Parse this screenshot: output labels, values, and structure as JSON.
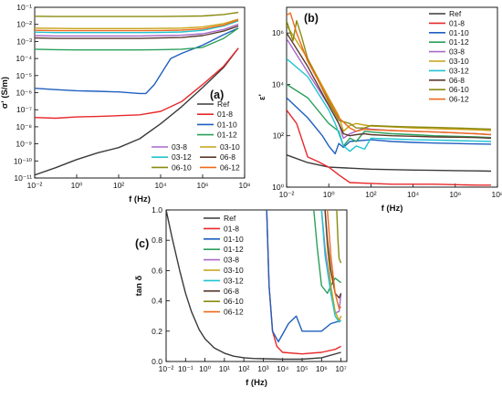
{
  "colors": {
    "Ref": "#3a3a3a",
    "01-8": "#e8282b",
    "01-10": "#1f5fbf",
    "01-12": "#2aa05a",
    "03-8": "#a768c9",
    "03-10": "#c7a013",
    "03-12": "#20c3d1",
    "06-8": "#5a3a2e",
    "06-10": "#8a8a10",
    "06-12": "#ee6a1c"
  },
  "chart_data": [
    {
      "id": "a",
      "type": "line",
      "panel_label": "(a)",
      "xlabel": "f (Hz)",
      "ylabel": "σ' (S/m)",
      "xscale": "log",
      "yscale": "log",
      "xlim": [
        0.01,
        100000000
      ],
      "ylim": [
        1e-11,
        0.1
      ],
      "xticks": [
        "10⁻²",
        "10⁰",
        "10²",
        "10⁴",
        "10⁶",
        "10⁸"
      ],
      "yticks": [
        "10⁻¹¹",
        "10⁻¹⁰",
        "10⁻⁹",
        "10⁻⁸",
        "10⁻⁷",
        "10⁻⁶",
        "10⁻⁵",
        "10⁻⁴",
        "10⁻³",
        "10⁻²",
        "10⁻¹"
      ],
      "series": [
        {
          "name": "Ref",
          "x": [
            0.01,
            0.1,
            1,
            10,
            100,
            1000,
            10000,
            100000,
            1000000,
            10000000,
            50000000
          ],
          "y": [
            1.5e-11,
            4e-11,
            1.2e-10,
            3e-10,
            6e-10,
            2e-09,
            1.5e-08,
            1.5e-07,
            2e-06,
            3e-05,
            0.0004
          ]
        },
        {
          "name": "01-8",
          "x": [
            0.01,
            0.1,
            1,
            10,
            100,
            1000,
            10000,
            100000,
            1000000,
            10000000,
            50000000
          ],
          "y": [
            3.5e-08,
            3.2e-08,
            3.8e-08,
            4e-08,
            4.5e-08,
            5e-08,
            8e-08,
            3e-07,
            3e-06,
            3.5e-05,
            0.0004
          ]
        },
        {
          "name": "01-10",
          "x": [
            0.01,
            0.1,
            1,
            10,
            100,
            1000,
            2000,
            5000,
            30000,
            100000,
            1000000,
            10000000,
            50000000
          ],
          "y": [
            1.8e-06,
            1.5e-06,
            1.3e-06,
            1.2e-06,
            1.1e-06,
            9e-07,
            9e-07,
            3e-06,
            0.0001,
            0.0002,
            0.0006,
            0.0025,
            0.006
          ]
        },
        {
          "name": "01-12",
          "x": [
            0.01,
            0.1,
            1,
            10,
            100,
            1000,
            10000,
            100000,
            1000000,
            10000000,
            50000000
          ],
          "y": [
            0.00035,
            0.00033,
            0.00032,
            0.00032,
            0.00032,
            0.00032,
            0.00033,
            0.00035,
            0.00045,
            0.0015,
            0.006
          ]
        },
        {
          "name": "03-8",
          "x": [
            0.01,
            0.1,
            1,
            10,
            100,
            1000,
            10000,
            100000,
            1000000,
            10000000,
            50000000
          ],
          "y": [
            0.0022,
            0.0021,
            0.0021,
            0.0021,
            0.0021,
            0.0021,
            0.0022,
            0.0023,
            0.0028,
            0.005,
            0.01
          ]
        },
        {
          "name": "03-10",
          "x": [
            0.01,
            0.1,
            1,
            10,
            100,
            1000,
            10000,
            100000,
            1000000,
            10000000,
            50000000
          ],
          "y": [
            0.006,
            0.0058,
            0.0057,
            0.0057,
            0.0057,
            0.0057,
            0.0058,
            0.006,
            0.007,
            0.011,
            0.02
          ]
        },
        {
          "name": "03-12",
          "x": [
            0.01,
            0.1,
            1,
            10,
            100,
            1000,
            10000,
            100000,
            1000000,
            10000000,
            50000000
          ],
          "y": [
            0.0035,
            0.0033,
            0.0033,
            0.0033,
            0.0033,
            0.0033,
            0.0034,
            0.0036,
            0.0045,
            0.008,
            0.016
          ]
        },
        {
          "name": "06-8",
          "x": [
            0.01,
            0.1,
            1,
            10,
            100,
            1000,
            10000,
            100000,
            1000000,
            10000000,
            50000000
          ],
          "y": [
            0.0016,
            0.0015,
            0.0015,
            0.0015,
            0.0015,
            0.0015,
            0.0016,
            0.0017,
            0.0022,
            0.004,
            0.008
          ]
        },
        {
          "name": "06-10",
          "x": [
            0.01,
            0.1,
            1,
            10,
            100,
            1000,
            10000,
            100000,
            1000000,
            10000000,
            50000000
          ],
          "y": [
            0.03,
            0.029,
            0.029,
            0.029,
            0.029,
            0.029,
            0.029,
            0.03,
            0.031,
            0.038,
            0.05
          ]
        },
        {
          "name": "06-12",
          "x": [
            0.01,
            0.1,
            1,
            10,
            100,
            1000,
            10000,
            100000,
            1000000,
            10000000,
            50000000
          ],
          "y": [
            0.0045,
            0.0043,
            0.0043,
            0.0043,
            0.0043,
            0.0043,
            0.0044,
            0.0046,
            0.0055,
            0.009,
            0.018
          ]
        }
      ]
    },
    {
      "id": "b",
      "type": "line",
      "panel_label": "(b)",
      "xlabel": "f (Hz)",
      "ylabel": "ε'",
      "xscale": "log",
      "yscale": "log",
      "xlim": [
        0.01,
        100000000
      ],
      "ylim": [
        1,
        10000000
      ],
      "xticks": [
        "10⁻²",
        "10⁰",
        "10²",
        "10⁴",
        "10⁶",
        "10⁸"
      ],
      "yticks": [
        "10⁰",
        "10²",
        "10⁴",
        "10⁶"
      ],
      "series": [
        {
          "name": "Ref",
          "x": [
            0.01,
            0.1,
            1,
            10,
            100,
            1000,
            10000,
            100000,
            1000000,
            10000000,
            50000000
          ],
          "y": [
            18,
            9,
            6,
            5.5,
            5,
            4.8,
            4.6,
            4.5,
            4.4,
            4.3,
            4.2
          ]
        },
        {
          "name": "01-8",
          "x": [
            0.01,
            0.03,
            0.1,
            0.3,
            1,
            3,
            10,
            100,
            1000,
            10000,
            100000,
            1000000,
            10000000,
            50000000
          ],
          "y": [
            1000,
            300,
            15,
            10,
            6,
            3,
            1.5,
            1.4,
            1.3,
            1.3,
            1.3,
            1.25,
            1.2,
            1.2
          ]
        },
        {
          "name": "01-10",
          "x": [
            0.01,
            0.1,
            0.5,
            1,
            2,
            3,
            5,
            10,
            100,
            1000,
            10000,
            100000,
            1000000,
            10000000,
            50000000
          ],
          "y": [
            3000,
            500,
            100,
            40,
            20,
            50,
            35,
            60,
            70,
            60,
            55,
            52,
            50,
            48,
            47
          ]
        },
        {
          "name": "01-12",
          "x": [
            0.01,
            0.1,
            1,
            3,
            5,
            10,
            20,
            50,
            100,
            1000,
            10000,
            100000,
            1000000,
            10000000,
            50000000
          ],
          "y": [
            10000,
            3000,
            300,
            150,
            40,
            80,
            60,
            150,
            140,
            120,
            110,
            100,
            95,
            90,
            85
          ]
        },
        {
          "name": "03-8",
          "x": [
            0.01,
            0.1,
            1,
            3,
            5,
            10,
            20,
            50,
            100,
            1000,
            10000,
            100000,
            1000000,
            10000000,
            50000000
          ],
          "y": [
            600000,
            30000,
            1500,
            300,
            80,
            120,
            150,
            200,
            180,
            160,
            150,
            140,
            130,
            120,
            110
          ]
        },
        {
          "name": "03-10",
          "x": [
            0.01,
            0.1,
            1,
            3,
            5,
            10,
            20,
            50,
            100,
            1000,
            10000,
            100000,
            1000000,
            10000000,
            50000000
          ],
          "y": [
            2000000,
            100000,
            3000,
            600,
            150,
            250,
            300,
            260,
            240,
            220,
            200,
            190,
            180,
            170,
            160
          ]
        },
        {
          "name": "03-12",
          "x": [
            0.01,
            0.1,
            1,
            2,
            5,
            10,
            20,
            50,
            100,
            1000,
            10000,
            100000,
            1000000,
            10000000,
            50000000
          ],
          "y": [
            100000,
            20000,
            1000,
            300,
            40,
            25,
            40,
            30,
            80,
            75,
            70,
            68,
            65,
            62,
            60
          ]
        },
        {
          "name": "06-8",
          "x": [
            0.01,
            0.1,
            1,
            3,
            5,
            10,
            20,
            50,
            100,
            1000,
            10000,
            100000,
            1000000,
            10000000,
            50000000
          ],
          "y": [
            1000000,
            50000,
            1500,
            300,
            120,
            100,
            110,
            120,
            110,
            100,
            95,
            90,
            88,
            85,
            80
          ]
        },
        {
          "name": "06-10",
          "x": [
            0.01,
            0.02,
            0.03,
            0.05,
            0.1,
            1,
            3,
            10,
            20,
            50,
            100,
            1000,
            10000,
            100000,
            1000000,
            10000000,
            50000000
          ],
          "y": [
            3000000,
            500000,
            3000000,
            800000,
            100000,
            2000,
            400,
            300,
            200,
            200,
            250,
            230,
            220,
            210,
            200,
            190,
            180
          ]
        },
        {
          "name": "06-12",
          "x": [
            0.01,
            0.015,
            0.03,
            0.1,
            1,
            3,
            10,
            20,
            50,
            100,
            1000,
            10000,
            100000,
            1000000,
            10000000,
            50000000
          ],
          "y": [
            5000000,
            6000000,
            1000000,
            80000,
            2500,
            500,
            200,
            150,
            180,
            170,
            160,
            150,
            140,
            130,
            120,
            110
          ]
        }
      ]
    },
    {
      "id": "c",
      "type": "line",
      "panel_label": "(c)",
      "xlabel": "f (Hz)",
      "ylabel": "tan δ",
      "xscale": "log",
      "yscale": "linear",
      "xlim": [
        0.01,
        20000000
      ],
      "ylim": [
        0,
        1.0
      ],
      "xticks": [
        "10⁻²",
        "10⁻¹",
        "10⁰",
        "10¹",
        "10²",
        "10³",
        "10⁴",
        "10⁵",
        "10⁶",
        "10⁷"
      ],
      "yticks": [
        "0.0",
        "0.2",
        "0.4",
        "0.6",
        "0.8",
        "1.0"
      ],
      "series": [
        {
          "name": "Ref",
          "x": [
            0.01,
            0.02,
            0.05,
            0.1,
            0.2,
            0.5,
            1,
            3,
            10,
            30,
            100,
            300,
            1000,
            10000,
            100000,
            1000000,
            10000000
          ],
          "y": [
            1.0,
            0.82,
            0.6,
            0.45,
            0.33,
            0.21,
            0.15,
            0.09,
            0.055,
            0.035,
            0.025,
            0.02,
            0.018,
            0.015,
            0.015,
            0.025,
            0.06
          ]
        },
        {
          "name": "01-8",
          "x": [
            1500,
            2000,
            3000,
            5000,
            10000,
            100000,
            1000000,
            5000000,
            10000000
          ],
          "y": [
            1.0,
            0.5,
            0.2,
            0.1,
            0.06,
            0.05,
            0.06,
            0.08,
            0.1
          ]
        },
        {
          "name": "01-10",
          "x": [
            1500,
            2000,
            3000,
            6000,
            20000,
            50000,
            100000,
            300000,
            1000000,
            3000000,
            10000000
          ],
          "y": [
            1.0,
            0.5,
            0.2,
            0.13,
            0.25,
            0.3,
            0.2,
            0.2,
            0.2,
            0.25,
            0.27
          ]
        },
        {
          "name": "01-12",
          "x": [
            400000,
            600000,
            1000000,
            2000000,
            3000000,
            5000000,
            10000000
          ],
          "y": [
            1.0,
            0.75,
            0.5,
            0.45,
            0.5,
            0.55,
            0.52
          ]
        },
        {
          "name": "03-8",
          "x": [
            1000000,
            1500000,
            3000000,
            5000000,
            8000000,
            10000000
          ],
          "y": [
            1.0,
            0.75,
            0.45,
            0.32,
            0.33,
            0.45
          ]
        },
        {
          "name": "03-10",
          "x": [
            1500000,
            2000000,
            3000000,
            5000000,
            8000000,
            10000000
          ],
          "y": [
            1.0,
            0.75,
            0.5,
            0.33,
            0.27,
            0.3
          ]
        },
        {
          "name": "03-12",
          "x": [
            1000000,
            1500000,
            3000000,
            5000000,
            8000000,
            10000000
          ],
          "y": [
            1.0,
            0.7,
            0.45,
            0.3,
            0.26,
            0.27
          ]
        },
        {
          "name": "06-8",
          "x": [
            1500000,
            2000000,
            3000000,
            5000000,
            8000000,
            10000000
          ],
          "y": [
            1.0,
            0.8,
            0.6,
            0.45,
            0.42,
            0.45
          ]
        },
        {
          "name": "06-10",
          "x": [
            6000000,
            7000000,
            8000000,
            10000000
          ],
          "y": [
            1.0,
            0.8,
            0.68,
            0.65
          ]
        },
        {
          "name": "06-12",
          "x": [
            2000000,
            3000000,
            5000000,
            8000000,
            10000000
          ],
          "y": [
            1.0,
            0.7,
            0.45,
            0.35,
            0.36
          ]
        }
      ]
    }
  ]
}
